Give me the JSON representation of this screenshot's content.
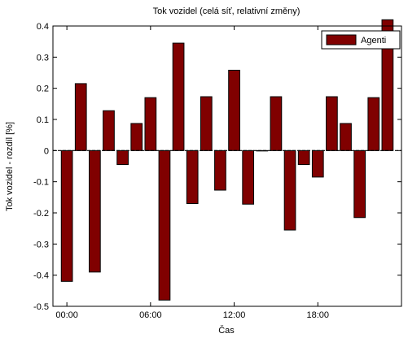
{
  "chart_data": {
    "type": "bar",
    "title": "Tok vozidel (celá síť, relativní změny)",
    "xlabel": "Čas",
    "ylabel": "Tok vozidel  - rozdíl [%]",
    "ylim": [
      -0.5,
      0.4
    ],
    "yticks": [
      "-0.5",
      "-0.4",
      "-0.3",
      "-0.2",
      "-0.1",
      "0",
      "0.1",
      "0.2",
      "0.3",
      "0.4"
    ],
    "xlim": [
      -1,
      24
    ],
    "xticks": [
      {
        "x": 0,
        "label": "00:00"
      },
      {
        "x": 6,
        "label": "06:00"
      },
      {
        "x": 12,
        "label": "12:00"
      },
      {
        "x": 18,
        "label": "18:00"
      }
    ],
    "grid": false,
    "legend_position": "top-right",
    "series": [
      {
        "name": "Agenti",
        "color": "#800000",
        "x": [
          0,
          1,
          2,
          3,
          4,
          5,
          6,
          7,
          8,
          9,
          10,
          11,
          12,
          13,
          14,
          15,
          16,
          17,
          18,
          19,
          20,
          21,
          22,
          23
        ],
        "values": [
          -0.42,
          0.215,
          -0.39,
          0.128,
          -0.045,
          0.087,
          0.17,
          -0.48,
          0.345,
          -0.17,
          0.173,
          -0.127,
          0.258,
          -0.172,
          0.0,
          0.173,
          -0.255,
          -0.045,
          -0.085,
          0.173,
          0.087,
          -0.215,
          0.17,
          0.42
        ]
      }
    ]
  }
}
